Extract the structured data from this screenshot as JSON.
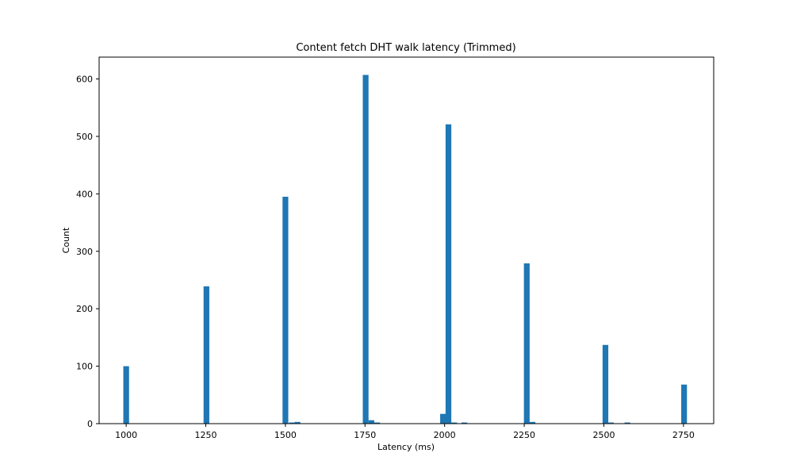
{
  "colors": {
    "bar": "#1f77b4",
    "axis": "#000000",
    "background": "#ffffff"
  },
  "chart_data": {
    "type": "bar",
    "title": "Content fetch DHT walk latency (Trimmed)",
    "xlabel": "Latency (ms)",
    "ylabel": "Count",
    "xlim": [
      915,
      2845
    ],
    "ylim": [
      0,
      638
    ],
    "xticks": [
      1000,
      1250,
      1500,
      1750,
      2000,
      2250,
      2500,
      2750
    ],
    "yticks": [
      0,
      100,
      200,
      300,
      400,
      500,
      600
    ],
    "grid": false,
    "legend": "none",
    "bin_width": 18,
    "bins": [
      {
        "x": 1000,
        "count": 100
      },
      {
        "x": 1252,
        "count": 239
      },
      {
        "x": 1500,
        "count": 395
      },
      {
        "x": 1520,
        "count": 2
      },
      {
        "x": 1538,
        "count": 3
      },
      {
        "x": 1752,
        "count": 607
      },
      {
        "x": 1770,
        "count": 6
      },
      {
        "x": 1788,
        "count": 2
      },
      {
        "x": 1995,
        "count": 17
      },
      {
        "x": 2012,
        "count": 521
      },
      {
        "x": 2030,
        "count": 2
      },
      {
        "x": 2062,
        "count": 2
      },
      {
        "x": 2258,
        "count": 279
      },
      {
        "x": 2276,
        "count": 3
      },
      {
        "x": 2505,
        "count": 137
      },
      {
        "x": 2522,
        "count": 2
      },
      {
        "x": 2574,
        "count": 2
      },
      {
        "x": 2752,
        "count": 68
      }
    ]
  }
}
